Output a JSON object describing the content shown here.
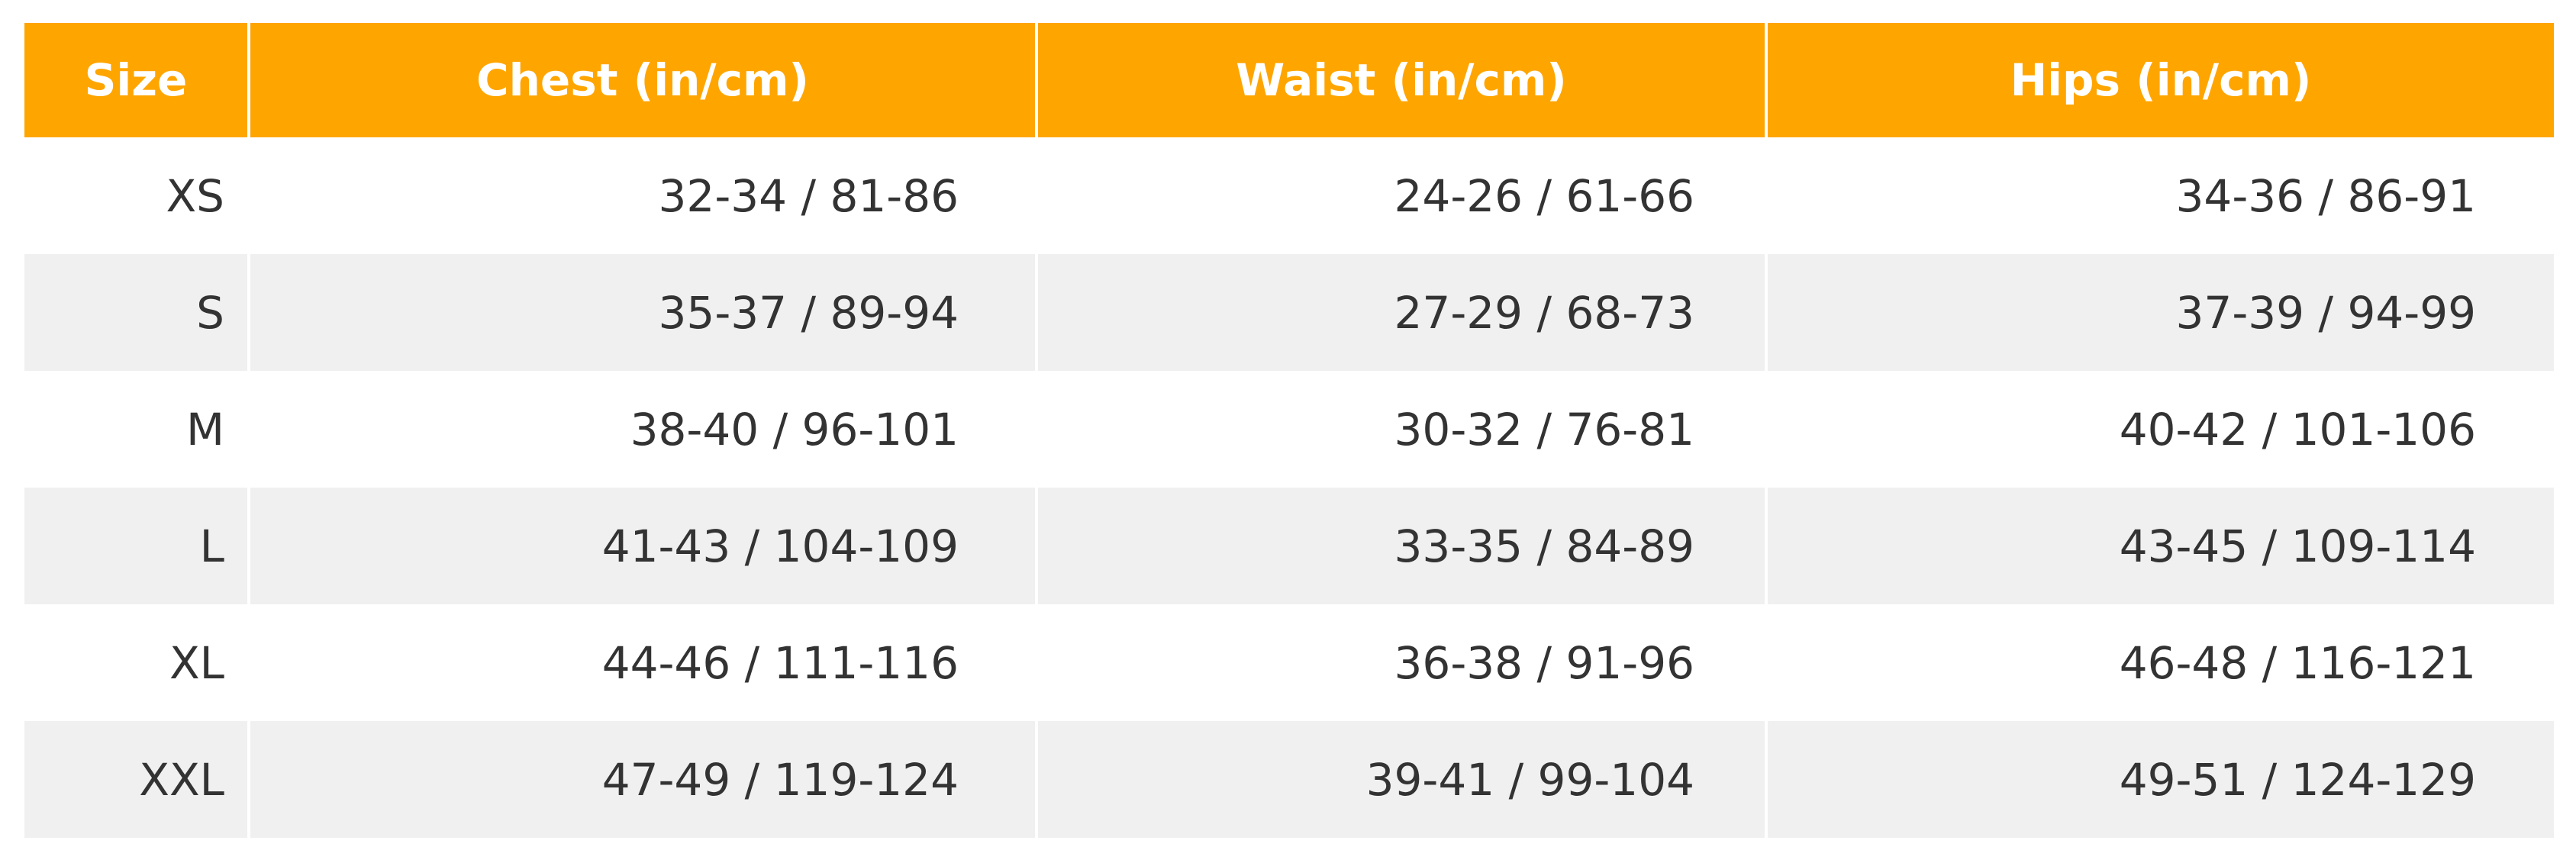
{
  "size_chart": {
    "header_color": "#ffa500",
    "stripe_color": "#f0f0f0",
    "columns": [
      "Size",
      "Chest (in/cm)",
      "Waist (in/cm)",
      "Hips (in/cm)"
    ],
    "rows": [
      {
        "size": "XS",
        "chest": "32-34 / 81-86",
        "waist": "24-26 / 61-66",
        "hips": "34-36 / 86-91"
      },
      {
        "size": "S",
        "chest": "35-37 / 89-94",
        "waist": "27-29 / 68-73",
        "hips": "37-39 / 94-99"
      },
      {
        "size": "M",
        "chest": "38-40 / 96-101",
        "waist": "30-32 / 76-81",
        "hips": "40-42 / 101-106"
      },
      {
        "size": "L",
        "chest": "41-43 / 104-109",
        "waist": "33-35 / 84-89",
        "hips": "43-45 / 109-114"
      },
      {
        "size": "XL",
        "chest": "44-46 / 111-116",
        "waist": "36-38 / 91-96",
        "hips": "46-48 / 116-121"
      },
      {
        "size": "XXL",
        "chest": "47-49 / 119-124",
        "waist": "39-41 / 99-104",
        "hips": "49-51 / 124-129"
      }
    ]
  }
}
